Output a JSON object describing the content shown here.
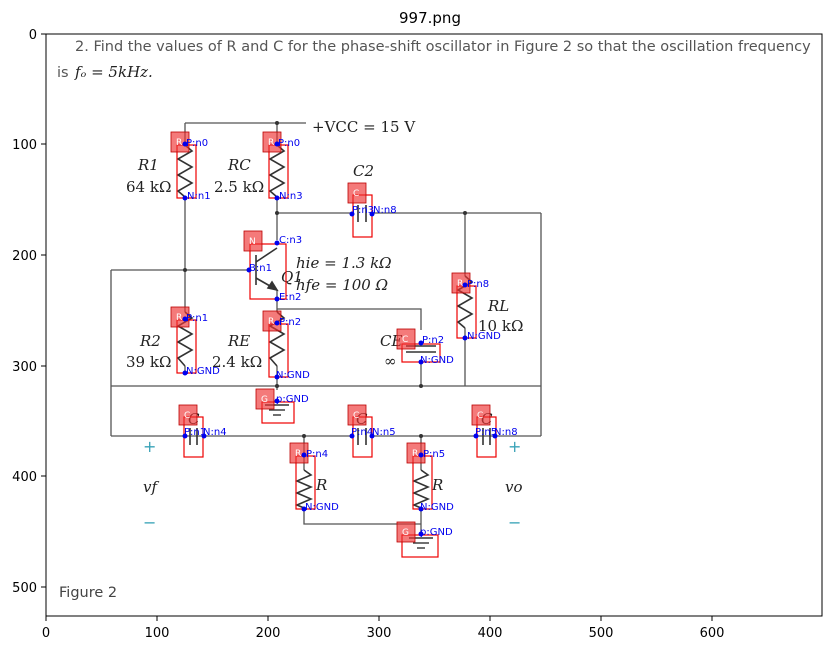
{
  "figure_title": "997.png",
  "problem": {
    "line1": "2. Find the values of R and C for the phase-shift oscillator in Figure 2 so that the oscillation frequency",
    "line2_prefix": "is",
    "line2_math": "fₒ = 5kHz."
  },
  "figure_caption": "Figure 2",
  "axes": {
    "x_ticks": [
      "0",
      "100",
      "200",
      "300",
      "400",
      "500",
      "600"
    ],
    "y_ticks": [
      "0",
      "100",
      "200",
      "300",
      "400",
      "500"
    ]
  },
  "circuit_labels": {
    "vcc": "+VCC = 15 V",
    "r1": "R1",
    "r1_val": "64 kΩ",
    "rc": "RC",
    "rc_val": "2.5 kΩ",
    "c2": "C2",
    "hie": "hie = 1.3 kΩ",
    "hfe": "hfe = 100 Ω",
    "q1": "Q1",
    "rl": "RL",
    "rl_val": "10 kΩ",
    "r2": "R2",
    "r2_val": "39 kΩ",
    "re": "RE",
    "re_val": "2.4 kΩ",
    "ce": "CE",
    "inf": "∞",
    "r_left": "R",
    "r_right": "R",
    "vf": "vf",
    "vo": "vo",
    "plus": "+",
    "minus": "−",
    "cap_c": "C"
  },
  "annotations": [
    {
      "tag": "R",
      "pins": [
        "P:n0",
        "N:n1"
      ]
    },
    {
      "tag": "R",
      "pins": [
        "P:n0",
        "N:n3"
      ]
    },
    {
      "tag": "C",
      "pins": [
        "P:n3",
        "N:n8"
      ]
    },
    {
      "tag": "N",
      "pins": [
        "C:n3",
        "B:n1",
        "E:n2"
      ]
    },
    {
      "tag": "R",
      "pins": [
        "P:n8",
        "N:GND"
      ]
    },
    {
      "tag": "R",
      "pins": [
        "P:n1",
        "N:GND"
      ]
    },
    {
      "tag": "R",
      "pins": [
        "P:n2",
        "N:GND"
      ]
    },
    {
      "tag": "C",
      "pins": [
        "P:n2",
        "N:GND"
      ]
    },
    {
      "tag": "G",
      "pins": [
        "p:GND"
      ]
    },
    {
      "tag": "C",
      "pins": [
        "P:n1",
        "N:n4"
      ]
    },
    {
      "tag": "C",
      "pins": [
        "P:n4",
        "N:n5"
      ]
    },
    {
      "tag": "C",
      "pins": [
        "P:n5",
        "N:n8"
      ]
    },
    {
      "tag": "R",
      "pins": [
        "P:n4",
        "N:GND"
      ]
    },
    {
      "tag": "R",
      "pins": [
        "P:n5",
        "N:GND"
      ]
    },
    {
      "tag": "G",
      "pins": [
        "p:GND"
      ]
    }
  ]
}
